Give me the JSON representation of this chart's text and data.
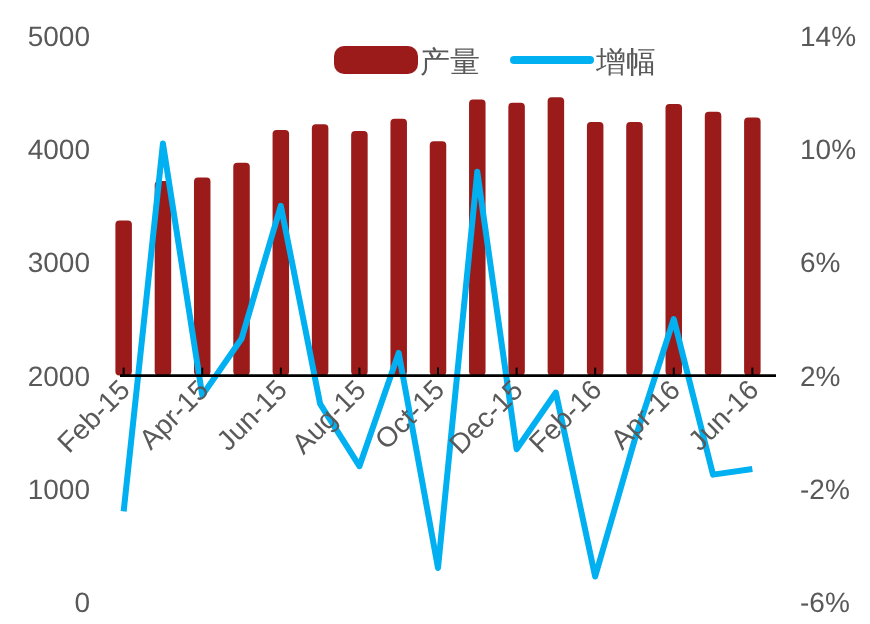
{
  "chart_data": {
    "type": "bar",
    "categories": [
      "Feb-15",
      null,
      "Apr-15",
      null,
      "Jun-15",
      null,
      "Aug-15",
      null,
      "Oct-15",
      null,
      "Dec-15",
      null,
      "Feb-16",
      null,
      "Apr-16",
      null,
      "Jun-16"
    ],
    "series": [
      {
        "name": "产量",
        "color": "#9b1b1b",
        "base": [
          2000,
          2000,
          2000,
          2000,
          2000,
          2000,
          2000,
          2000,
          2000,
          2000,
          2000,
          2000,
          2000,
          2000,
          2000,
          2000,
          2000
        ],
        "values": [
          1370,
          1720,
          1750,
          1880,
          2170,
          2220,
          2160,
          2270,
          2070,
          2440,
          2410,
          2460,
          2240,
          2240,
          2400,
          2330,
          2280
        ]
      },
      {
        "name": "增幅",
        "type": "line",
        "axis": "y2",
        "color": "#00b0f0",
        "values": [
          -2.8,
          10.2,
          1.3,
          3.3,
          8.0,
          1.0,
          -1.2,
          2.8,
          -4.8,
          9.2,
          -0.6,
          1.4,
          -5.1,
          -0.3,
          4.0,
          -1.5,
          -1.3
        ]
      }
    ],
    "ylim": [
      0,
      5000
    ],
    "yticks": [
      0,
      1000,
      2000,
      3000,
      4000,
      5000
    ],
    "y2lim": [
      -6,
      14
    ],
    "y2ticks": [
      {
        "value": -6,
        "label": "-6%"
      },
      {
        "value": -2,
        "label": "-2%"
      },
      {
        "value": 2,
        "label": "2%"
      },
      {
        "value": 6,
        "label": "6%"
      },
      {
        "value": 10,
        "label": "10%"
      },
      {
        "value": 14,
        "label": "14%"
      }
    ],
    "legend": "top",
    "grid": false,
    "marker": "none",
    "line_style": "solid"
  }
}
